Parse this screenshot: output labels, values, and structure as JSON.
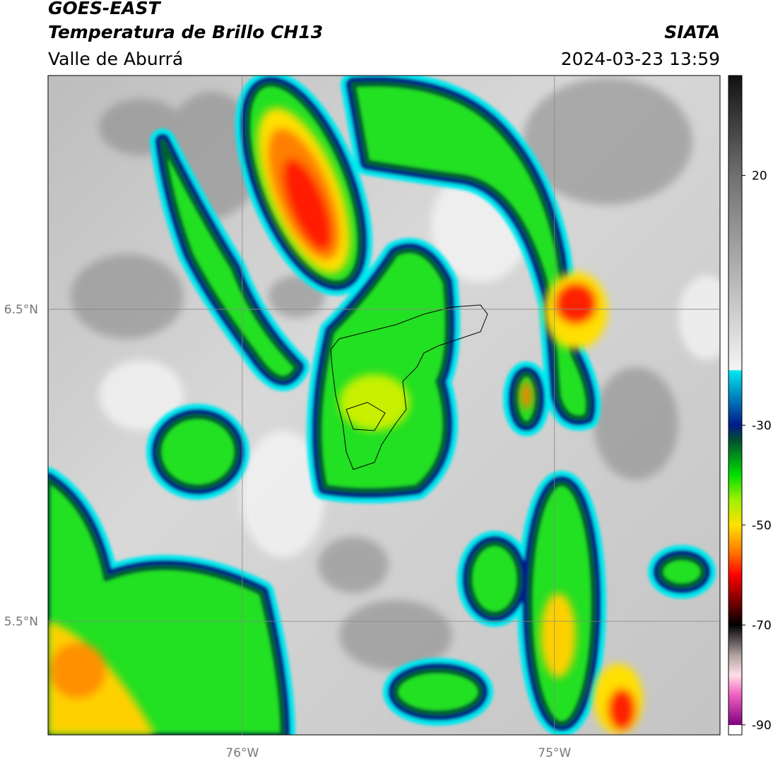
{
  "header": {
    "satellite": "GOES-EAST",
    "product": "Temperatura de Brillo CH13",
    "region": "Valle de Aburrá",
    "agency": "SIATA",
    "datetime": "2024-03-23 13:59"
  },
  "map": {
    "xlim": [
      -76.622,
      -74.47
    ],
    "ylim": [
      5.136,
      7.249
    ],
    "xticks": [
      {
        "value": -76,
        "label": "76°W"
      },
      {
        "value": -75,
        "label": "75°W"
      }
    ],
    "yticks": [
      {
        "value": 6.5,
        "label": "6.5°N"
      },
      {
        "value": 5.5,
        "label": "5.5°N"
      }
    ],
    "grid": true,
    "grid_color": "#888888"
  },
  "colorbar": {
    "clim": [
      -92,
      40
    ],
    "ticks": [
      20,
      -30,
      -50,
      -70,
      -90
    ],
    "stops": [
      {
        "value": 40,
        "color": "#111111"
      },
      {
        "value": 20,
        "color": "#707070"
      },
      {
        "value": -19,
        "color": "#f5f5f5"
      },
      {
        "value": -19,
        "color": "#00e8f0"
      },
      {
        "value": -30,
        "color": "#001a8a"
      },
      {
        "value": -33,
        "color": "#005030"
      },
      {
        "value": -40,
        "color": "#00e000"
      },
      {
        "value": -45,
        "color": "#a0f000"
      },
      {
        "value": -50,
        "color": "#ffe000"
      },
      {
        "value": -55,
        "color": "#ff8000"
      },
      {
        "value": -60,
        "color": "#ff0000"
      },
      {
        "value": -65,
        "color": "#800000"
      },
      {
        "value": -70,
        "color": "#000000"
      },
      {
        "value": -76,
        "color": "#b0a0a0"
      },
      {
        "value": -80,
        "color": "#ffe0e8"
      },
      {
        "value": -84,
        "color": "#f060c0"
      },
      {
        "value": -90,
        "color": "#800080"
      },
      {
        "value": -90,
        "color": "#ffffff"
      },
      {
        "value": -92,
        "color": "#ffffff"
      }
    ]
  }
}
